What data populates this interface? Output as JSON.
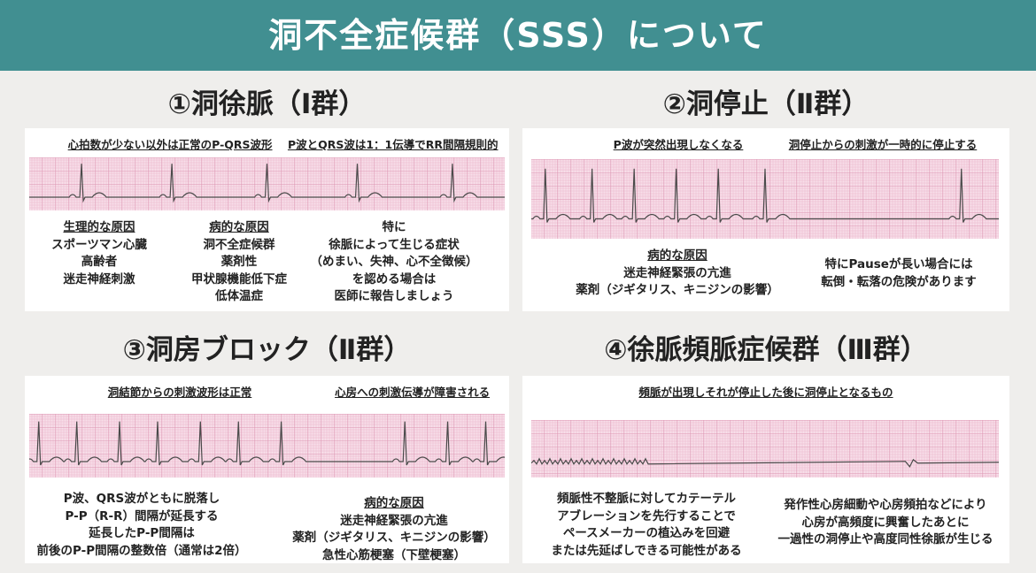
{
  "header": {
    "title": "洞不全症候群（SSS）について"
  },
  "sections": [
    {
      "title": "①洞徐脈（Ⅰ群）",
      "notes": [
        "心拍数が少ない以外は正常のP-QRS波形",
        "P波とQRS波は1：1伝導でRR間隔規則的"
      ],
      "blocks": [
        {
          "heading": "生理的な原因",
          "lines": [
            "スポーツマン心臓",
            "高齢者",
            "迷走神経刺激"
          ]
        },
        {
          "heading": "病的な原因",
          "lines": [
            "洞不全症候群",
            "薬剤性",
            "甲状腺機能低下症",
            "低体温症"
          ]
        },
        {
          "lines": [
            "特に",
            "徐脈によって生じる症状",
            "（めまい、失神、心不全徴候）",
            "を認める場合は",
            "医師に報告しましょう"
          ]
        }
      ]
    },
    {
      "title": "②洞停止（Ⅱ群）",
      "notes": [
        "P波が突然出現しなくなる",
        "洞停止からの刺激が一時的に停止する"
      ],
      "blocks": [
        {
          "heading": "病的な原因",
          "lines": [
            "迷走神経緊張の亢進",
            "薬剤（ジギタリス、キニジンの影響）"
          ]
        },
        {
          "lines": [
            "特にPauseが長い場合には",
            "転倒・転落の危険があります"
          ]
        }
      ]
    },
    {
      "title": "③洞房ブロック（Ⅱ群）",
      "notes": [
        "洞結節からの刺激波形は正常",
        "心房への刺激伝導が障害される"
      ],
      "blocks": [
        {
          "lines": [
            "P波、QRS波がともに脱落し",
            "P-P（R-R）間隔が延長する",
            "延長したP-P間隔は",
            "前後のP-P間隔の整数倍（通常は2倍）"
          ]
        },
        {
          "heading": "病的な原因",
          "lines": [
            "迷走神経緊張の亢進",
            "薬剤（ジギタリス、キニジンの影響）",
            "急性心筋梗塞（下壁梗塞）"
          ]
        }
      ]
    },
    {
      "title": "④徐脈頻脈症候群（Ⅲ群）",
      "notes": [
        "頻脈が出現しそれが停止した後に洞停止となるもの"
      ],
      "blocks": [
        {
          "lines": [
            "頻脈性不整脈に対してカテーテル",
            "アブレーションを先行することで",
            "ペースメーカーの植込みを回避",
            "または先延ばしできる可能性がある"
          ]
        },
        {
          "lines": [
            "発作性心房細動や心房頻拍などにより",
            "心房が高頻度に興奮したあとに",
            "一過性の洞停止や高度同性徐脈が生じる"
          ]
        }
      ]
    }
  ]
}
